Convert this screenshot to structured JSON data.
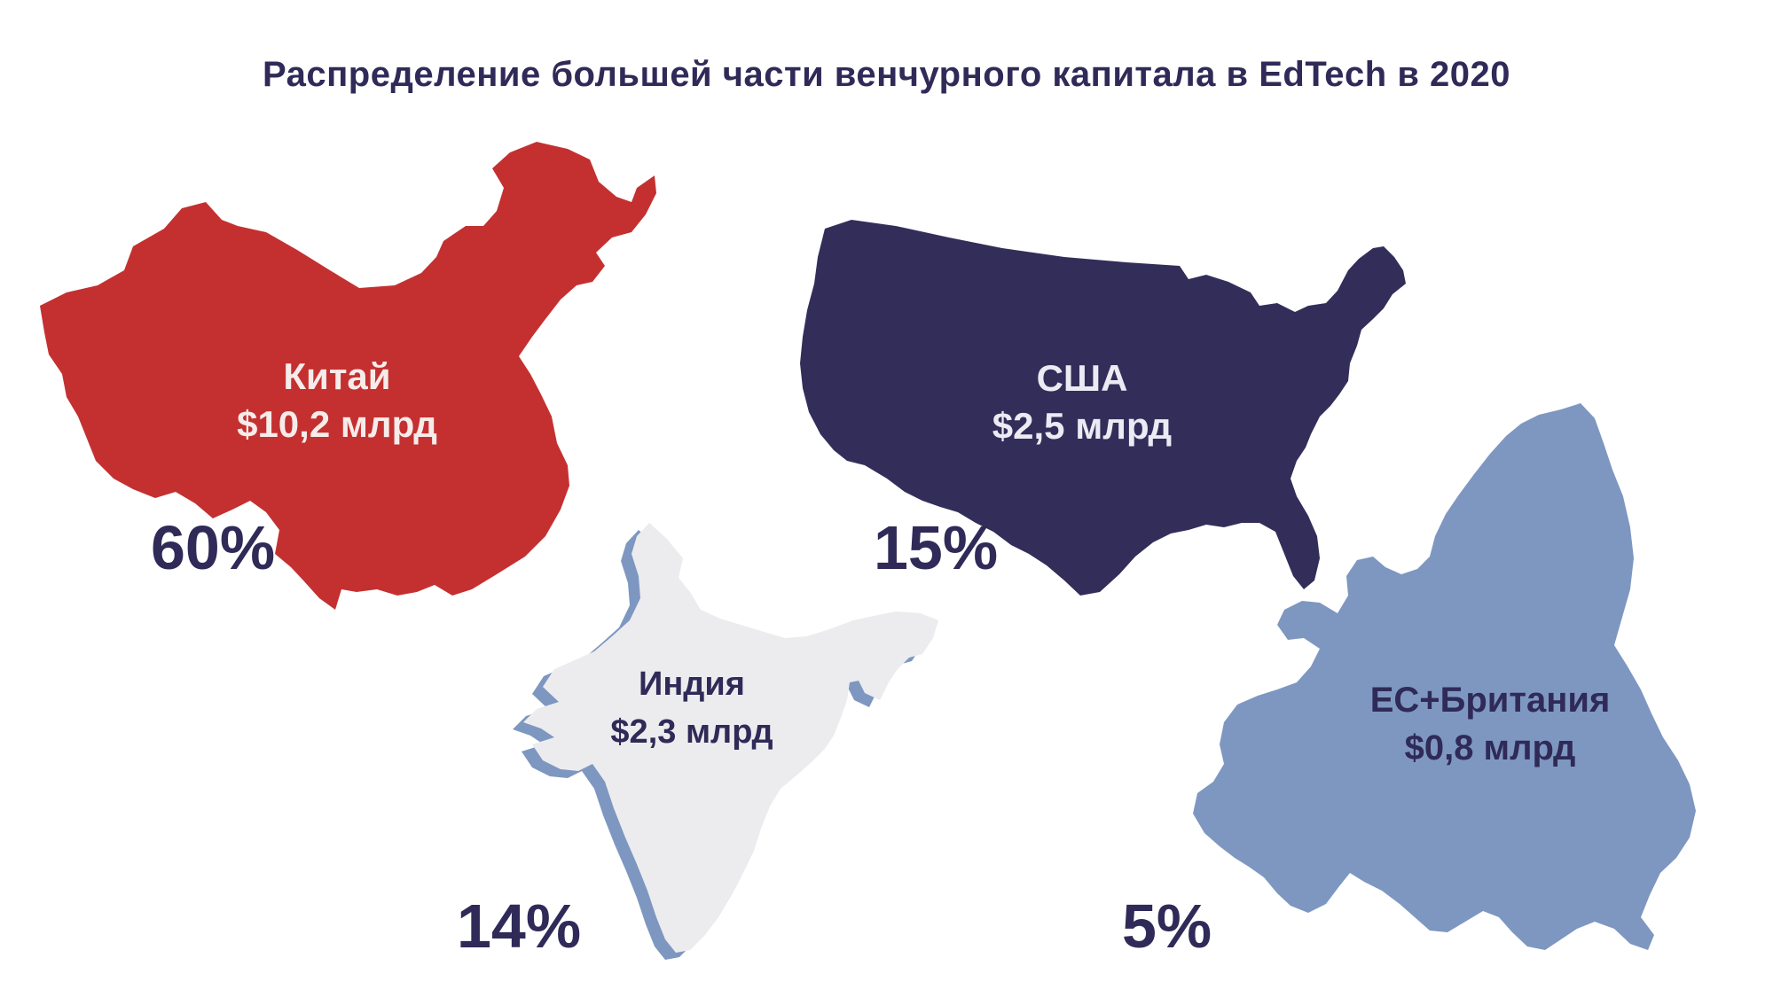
{
  "title": "Распределение большей части венчурного капитала в EdTech в 2020",
  "regions": [
    {
      "id": "china",
      "name": "Китай",
      "amount": "$10,2 млрд",
      "share": "60%",
      "color": "#c43030",
      "label_color": "#f6ecea"
    },
    {
      "id": "usa",
      "name": "США",
      "amount": "$2,5 млрд",
      "share": "15%",
      "color": "#332d5a",
      "label_color": "#eceaf3"
    },
    {
      "id": "india",
      "name": "Индия",
      "amount": "$2,3 млрд",
      "share": "14%",
      "color": "#ececee",
      "outline_color": "#7e97c1",
      "label_color": "#2f2a57"
    },
    {
      "id": "eu",
      "name": "ЕС+Британия",
      "amount": "$0,8 млрд",
      "share": "5%",
      "color": "#7e97c1",
      "label_color": "#2f2a57"
    }
  ]
}
